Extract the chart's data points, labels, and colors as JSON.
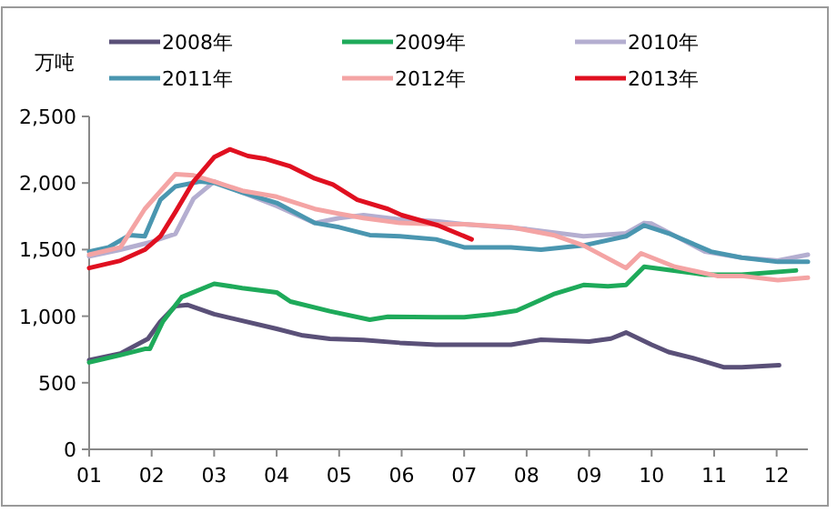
{
  "chart_data": {
    "type": "line",
    "ylabel": "万吨",
    "legend": "top",
    "grid": false,
    "marker": "none",
    "line_style": "solid",
    "xlim": [
      1,
      12.5
    ],
    "ylim": [
      0,
      2500
    ],
    "xticks": [
      {
        "value": 1,
        "label": "01"
      },
      {
        "value": 2,
        "label": "02"
      },
      {
        "value": 3,
        "label": "03"
      },
      {
        "value": 4,
        "label": "04"
      },
      {
        "value": 5,
        "label": "05"
      },
      {
        "value": 6,
        "label": "06"
      },
      {
        "value": 7,
        "label": "07"
      },
      {
        "value": 8,
        "label": "08"
      },
      {
        "value": 9,
        "label": "09"
      },
      {
        "value": 10,
        "label": "10"
      },
      {
        "value": 11,
        "label": "11"
      },
      {
        "value": 12,
        "label": "12"
      }
    ],
    "yticks": [
      {
        "value": 0,
        "label": "0"
      },
      {
        "value": 500,
        "label": "500"
      },
      {
        "value": 1000,
        "label": "1,000"
      },
      {
        "value": 1500,
        "label": "1,500"
      },
      {
        "value": 2000,
        "label": "2,000"
      },
      {
        "value": 2500,
        "label": "2,500"
      }
    ],
    "series": [
      {
        "name": "2008年",
        "color": "#5a5078",
        "x": [
          1,
          1.5,
          1.94,
          2.14,
          2.38,
          2.57,
          3,
          4,
          4.42,
          4.85,
          5.39,
          5.97,
          6.55,
          7,
          7.75,
          8.23,
          9,
          9.35,
          9.59,
          10,
          10.27,
          10.66,
          11.15,
          11.44,
          12.04
        ],
        "values": [
          670,
          720,
          830,
          960,
          1075,
          1085,
          1015,
          905,
          855,
          830,
          822,
          800,
          785,
          786,
          785,
          823,
          809,
          832,
          877,
          786,
          731,
          686,
          617,
          617,
          631
        ]
      },
      {
        "name": "2009年",
        "color": "#1eaa5a",
        "x": [
          1,
          1.5,
          1.89,
          1.97,
          2.18,
          2.48,
          3,
          3.45,
          4,
          4.22,
          4.85,
          5.49,
          5.78,
          6.55,
          7,
          7.46,
          7.84,
          8.43,
          8.91,
          9.3,
          9.59,
          9.88,
          10.27,
          10.85,
          11.44,
          12.31
        ],
        "values": [
          653,
          708,
          754,
          754,
          960,
          1143,
          1243,
          1211,
          1179,
          1110,
          1037,
          973,
          996,
          992,
          992,
          1014,
          1042,
          1165,
          1234,
          1225,
          1234,
          1371,
          1348,
          1312,
          1312,
          1343
        ]
      },
      {
        "name": "2010年",
        "color": "#b4aed0",
        "x": [
          1,
          1.5,
          1.97,
          2.38,
          2.67,
          3,
          4,
          4.61,
          5,
          5.39,
          5.97,
          6.55,
          7,
          8,
          8.91,
          9.59,
          9.88,
          10,
          10.85,
          11.44,
          12.02,
          12.5
        ],
        "values": [
          1449,
          1499,
          1554,
          1618,
          1883,
          2011,
          1828,
          1700,
          1737,
          1759,
          1727,
          1713,
          1691,
          1654,
          1600,
          1622,
          1700,
          1695,
          1485,
          1440,
          1417,
          1462
        ]
      },
      {
        "name": "2011年",
        "color": "#4a96b0",
        "x": [
          1,
          1.31,
          1.65,
          1.89,
          2.14,
          2.38,
          2.77,
          3,
          3.45,
          4,
          4.61,
          5,
          5.49,
          5.97,
          6.55,
          7,
          7.75,
          8.23,
          8.91,
          9.59,
          9.88,
          10.27,
          10.95,
          11.44,
          12.02,
          12.5
        ],
        "values": [
          1485,
          1517,
          1609,
          1600,
          1874,
          1974,
          2011,
          2002,
          1929,
          1851,
          1700,
          1668,
          1609,
          1600,
          1577,
          1517,
          1517,
          1499,
          1531,
          1600,
          1682,
          1622,
          1485,
          1440,
          1408,
          1408
        ]
      },
      {
        "name": "2012年",
        "color": "#f4a4a4",
        "x": [
          1,
          1.5,
          1.89,
          2.38,
          2.67,
          3,
          3.45,
          4,
          4.61,
          5,
          5.39,
          5.97,
          6.55,
          7,
          7.75,
          8.43,
          8.91,
          9.59,
          9.83,
          10.37,
          11.05,
          11.44,
          12.02,
          12.5
        ],
        "values": [
          1462,
          1517,
          1805,
          2066,
          2057,
          2011,
          1942,
          1897,
          1805,
          1769,
          1737,
          1700,
          1691,
          1691,
          1668,
          1609,
          1531,
          1362,
          1472,
          1371,
          1302,
          1302,
          1270,
          1289
        ]
      },
      {
        "name": "2013年",
        "color": "#e01020",
        "x": [
          1,
          1.5,
          1.89,
          2.14,
          2.38,
          2.67,
          3,
          3.25,
          3.54,
          3.83,
          4.22,
          4.61,
          4.9,
          5.29,
          5.78,
          6,
          6.58,
          7.12
        ],
        "values": [
          1362,
          1417,
          1499,
          1600,
          1782,
          2011,
          2194,
          2253,
          2203,
          2180,
          2125,
          2034,
          1988,
          1874,
          1805,
          1759,
          1682,
          1577
        ]
      }
    ]
  }
}
